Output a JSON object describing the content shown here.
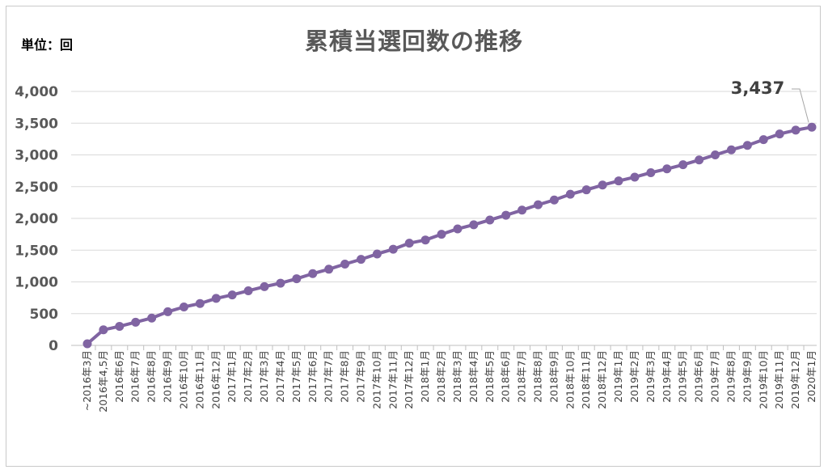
{
  "unit_label": "単位：回",
  "chart_data": {
    "type": "line",
    "title": "累積当選回数の推移",
    "xlabel": "",
    "ylabel": "",
    "ylim": [
      0,
      4000
    ],
    "yticks": [
      0,
      500,
      1000,
      1500,
      2000,
      2500,
      3000,
      3500,
      4000
    ],
    "ytick_labels": [
      "0",
      "500",
      "1,000",
      "1,500",
      "2,000",
      "2,500",
      "3,000",
      "3,500",
      "4,000"
    ],
    "grid": true,
    "legend": "none",
    "series_color": "#8064a2",
    "categories": [
      "~2016年3月",
      "2016年4,5月",
      "2016年6月",
      "2016年7月",
      "2016年8月",
      "2016年9月",
      "2016年10月",
      "2016年11月",
      "2016年12月",
      "2017年1月",
      "2017年2月",
      "2017年3月",
      "2017年4月",
      "2017年5月",
      "2017年6月",
      "2017年7月",
      "2017年8月",
      "2017年9月",
      "2017年10月",
      "2017年11月",
      "2017年12月",
      "2018年1月",
      "2018年2月",
      "2018年3月",
      "2018年4月",
      "2018年5月",
      "2018年6月",
      "2018年7月",
      "2018年8月",
      "2018年9月",
      "2018年10月",
      "2018年11月",
      "2018年12月",
      "2019年1月",
      "2019年2月",
      "2019年3月",
      "2019年4月",
      "2019年5月",
      "2019年6月",
      "2019年7月",
      "2019年8月",
      "2019年9月",
      "2019年10月",
      "2019年11月",
      "2019年12月",
      "2020年1月"
    ],
    "series": [
      {
        "values": [
          25,
          245,
          300,
          365,
          430,
          530,
          605,
          660,
          740,
          795,
          860,
          925,
          980,
          1050,
          1130,
          1200,
          1280,
          1355,
          1440,
          1515,
          1610,
          1660,
          1750,
          1835,
          1900,
          1975,
          2050,
          2130,
          2215,
          2290,
          2380,
          2450,
          2525,
          2590,
          2650,
          2720,
          2780,
          2845,
          2920,
          3000,
          3080,
          3150,
          3240,
          3330,
          3390,
          3437
        ]
      }
    ],
    "data_labels": [
      {
        "index": 45,
        "text": "3,437"
      }
    ]
  }
}
